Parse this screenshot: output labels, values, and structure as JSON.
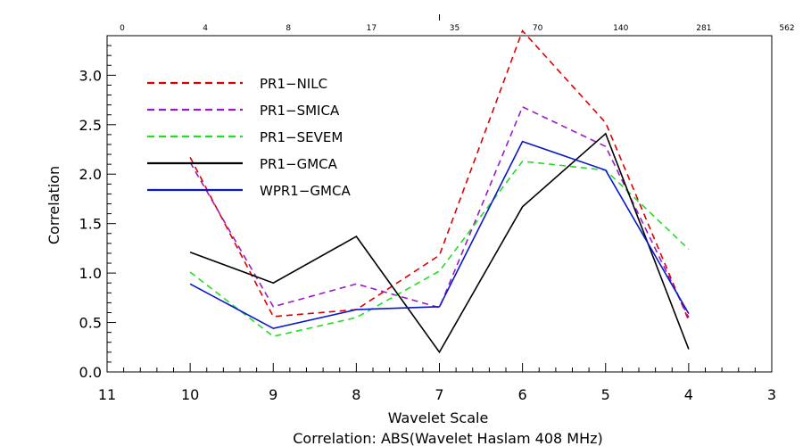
{
  "chart_data": {
    "type": "line",
    "title": "",
    "xlabel": "Wavelet Scale",
    "ylabel": "Correlation",
    "caption": "Correlation: ABS(Wavelet  Haslam 408 MHz)",
    "x": [
      10,
      9,
      8,
      7,
      6,
      5,
      4
    ],
    "xlim": [
      11,
      3
    ],
    "ylim": [
      0,
      3.4
    ],
    "x_ticks": [
      "11",
      "10",
      "9",
      "8",
      "7",
      "6",
      "5",
      "4",
      "3"
    ],
    "y_ticks": [
      "0.0",
      "0.5",
      "1.0",
      "1.5",
      "2.0",
      "2.5",
      "3.0"
    ],
    "top_axis_ticks": [
      "0",
      "4",
      "8",
      "17",
      "35",
      "70",
      "140",
      "281",
      "562"
    ],
    "legend_position": "top-left",
    "grid": false,
    "series": [
      {
        "name": "PR1−NILC",
        "color": "#dd0000",
        "dash": "dashed",
        "values": [
          2.17,
          0.56,
          0.63,
          1.18,
          3.45,
          2.52,
          0.52
        ]
      },
      {
        "name": "PR1−SMICA",
        "color": "#9a1ac8",
        "dash": "dashed",
        "values": [
          2.12,
          0.66,
          0.89,
          0.65,
          2.68,
          2.28,
          0.55
        ]
      },
      {
        "name": "PR1−SEVEM",
        "color": "#22dd22",
        "dash": "dashed",
        "values": [
          1.01,
          0.36,
          0.55,
          1.02,
          2.13,
          2.04,
          1.24
        ]
      },
      {
        "name": "PR1−GMCA",
        "color": "#000000",
        "dash": "solid",
        "values": [
          1.21,
          0.9,
          1.37,
          0.2,
          1.67,
          2.41,
          0.23
        ]
      },
      {
        "name": "WPR1−GMCA",
        "color": "#0a18cc",
        "dash": "solid",
        "values": [
          0.89,
          0.44,
          0.63,
          0.66,
          2.33,
          2.04,
          0.59
        ]
      }
    ]
  }
}
